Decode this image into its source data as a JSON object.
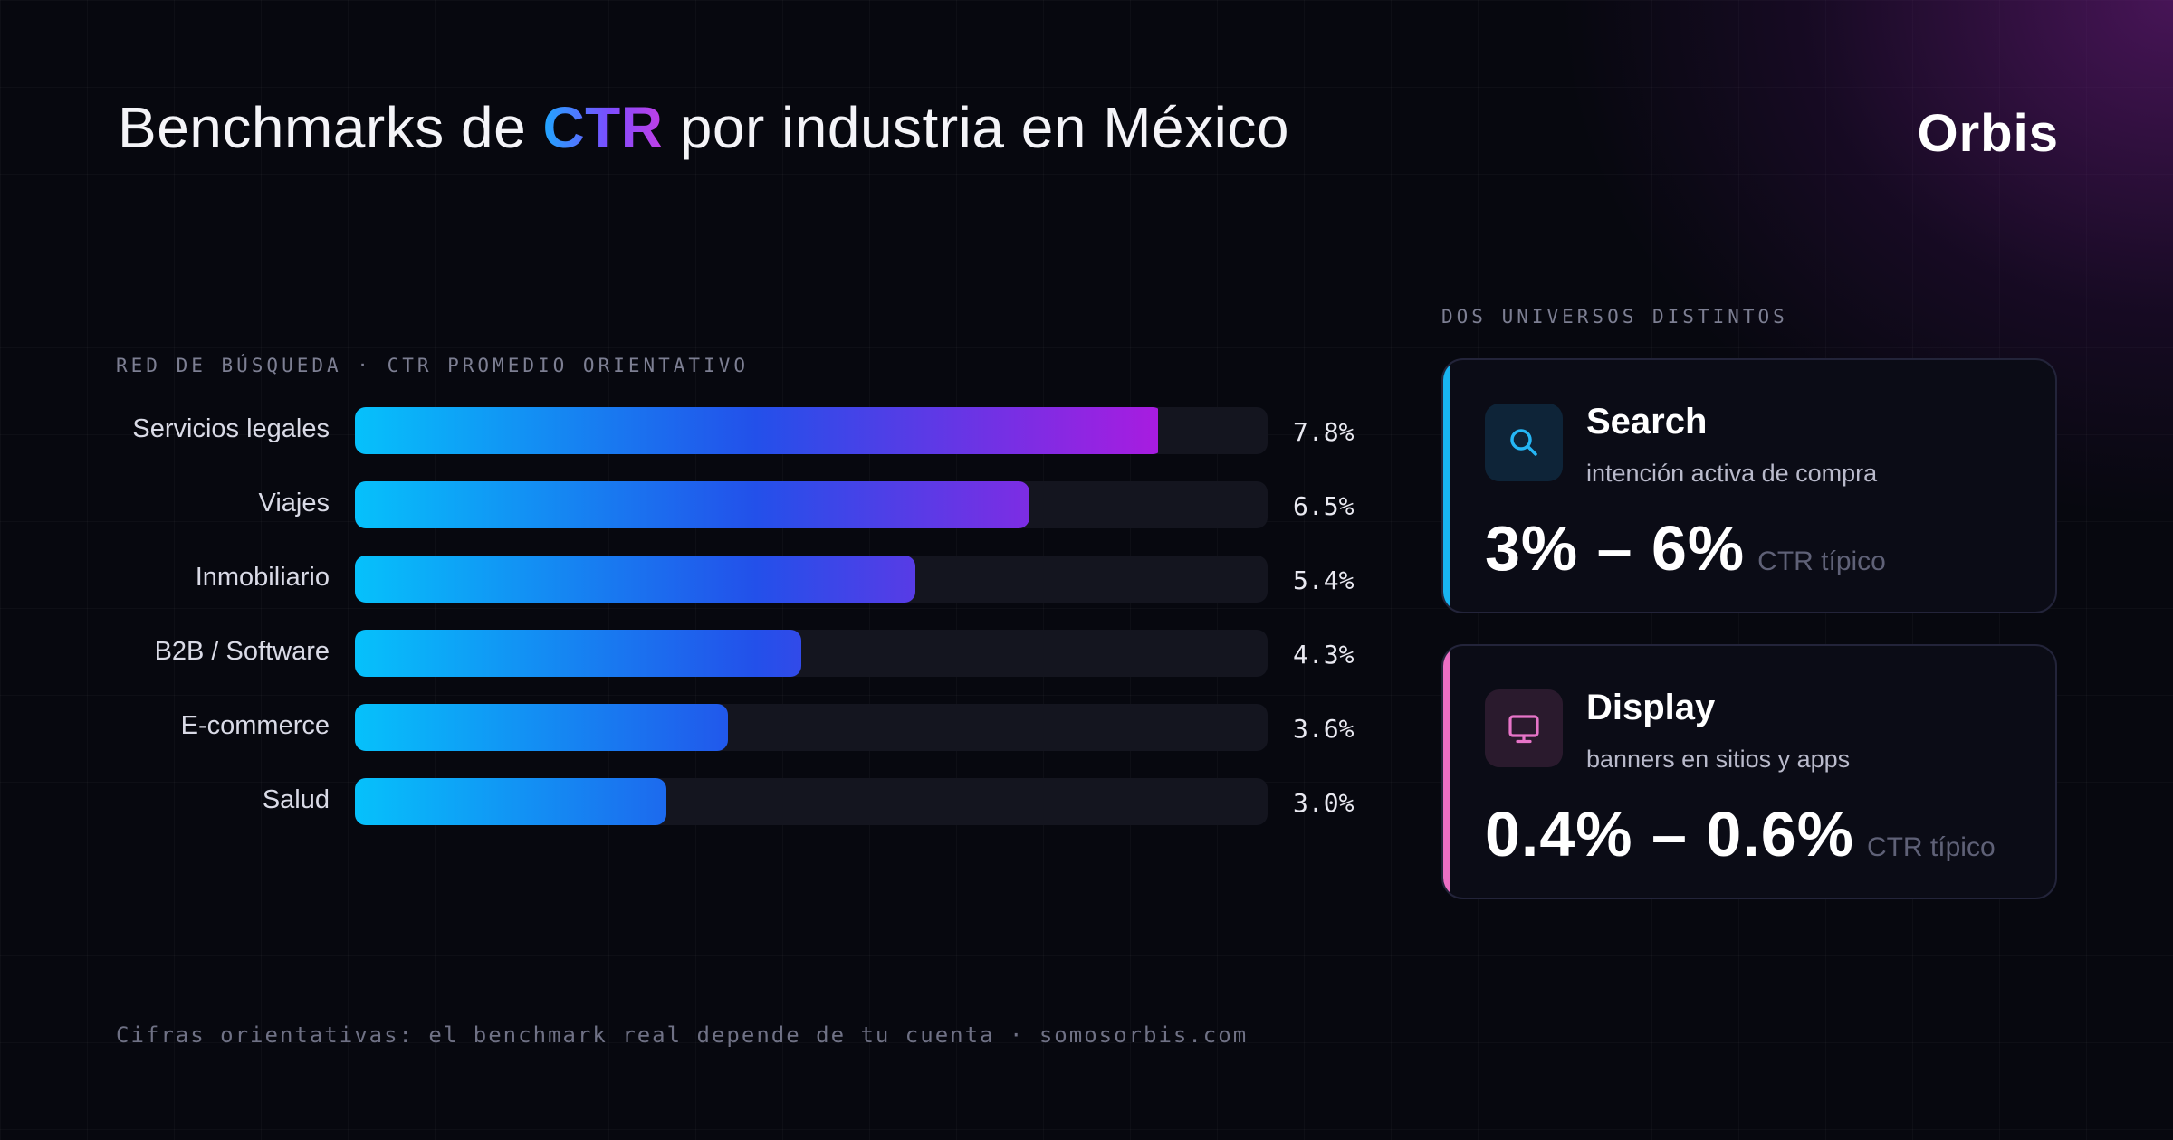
{
  "header": {
    "title_before": "Benchmarks de ",
    "title_highlight": "CTR",
    "title_after": " por industria en México",
    "brand": "Orbis"
  },
  "chart_data": {
    "type": "bar",
    "orientation": "horizontal",
    "title": "RED DE BÚSQUEDA · CTR PROMEDIO ORIENTATIVO",
    "categories": [
      "Servicios legales",
      "Viajes",
      "Inmobiliario",
      "B2B / Software",
      "E-commerce",
      "Salud"
    ],
    "values": [
      7.8,
      6.5,
      5.4,
      4.3,
      3.6,
      3.0
    ],
    "value_labels": [
      "7.8%",
      "6.5%",
      "5.4%",
      "4.3%",
      "3.6%",
      "3.0%"
    ],
    "xlim": [
      0,
      8.8
    ],
    "grid": false,
    "gradient": [
      "#06c1fb",
      "#2350ea",
      "#a81ce0"
    ]
  },
  "side": {
    "caption": "DOS UNIVERSOS DISTINTOS",
    "cards": [
      {
        "name": "Search",
        "description": "intención activa de compra",
        "range": "3% – 6%",
        "unit": "CTR típico",
        "icon": "search-icon",
        "accent": "#18b4f2",
        "icon_color": "#25b6f5"
      },
      {
        "name": "Display",
        "description": "banners en sitios y apps",
        "range": "0.4% – 0.6%",
        "unit": "CTR típico",
        "icon": "monitor-icon",
        "accent": "#ec6fc4",
        "icon_color": "#e774c8"
      }
    ]
  },
  "footer": "Cifras orientativas: el benchmark real depende de tu cuenta · somosorbis.com"
}
